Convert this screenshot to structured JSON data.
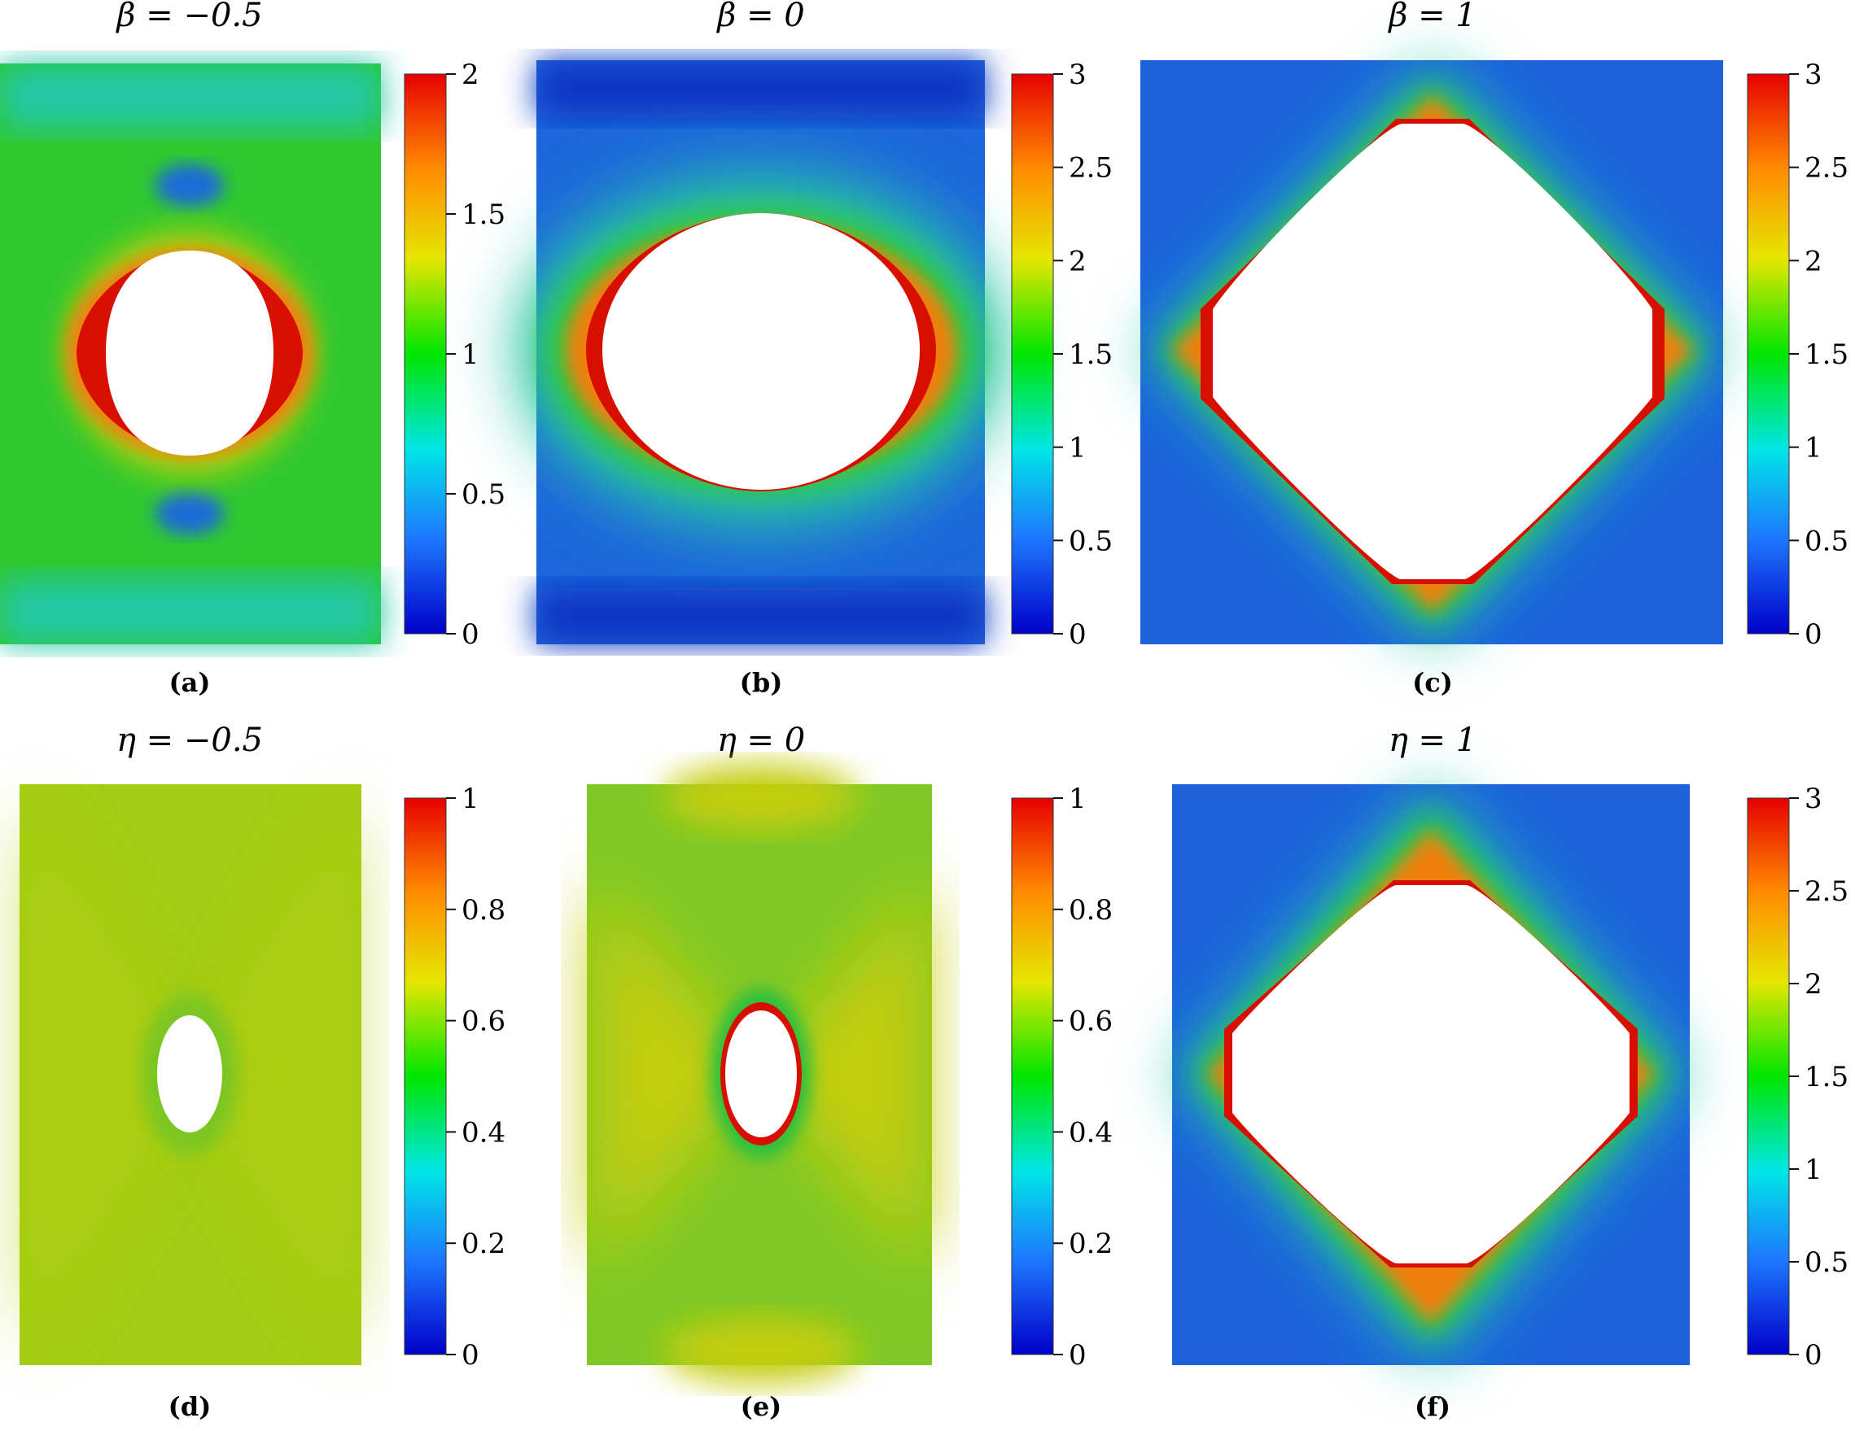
{
  "panels": [
    {
      "title": "β = −0.5",
      "label": "(a)",
      "ticks": [
        "2",
        "1.5",
        "1",
        "0.5",
        "0"
      ]
    },
    {
      "title": "β = 0",
      "label": "(b)",
      "ticks": [
        "3",
        "2.5",
        "2",
        "1.5",
        "1",
        "0.5",
        "0"
      ]
    },
    {
      "title": "β = 1",
      "label": "(c)",
      "ticks": [
        "3",
        "2.5",
        "2",
        "1.5",
        "1",
        "0.5",
        "0"
      ]
    },
    {
      "title": "η = −0.5",
      "label": "(d)",
      "ticks": [
        "1",
        "0.8",
        "0.6",
        "0.4",
        "0.2",
        "0"
      ]
    },
    {
      "title": "η = 0",
      "label": "(e)",
      "ticks": [
        "1",
        "0.8",
        "0.6",
        "0.4",
        "0.2",
        "0"
      ]
    },
    {
      "title": "η = 1",
      "label": "(f)",
      "ticks": [
        "3",
        "2.5",
        "2",
        "1.5",
        "1",
        "0.5",
        "0"
      ]
    }
  ],
  "colormap": [
    "#0000c8",
    "#1e78ff",
    "#00e6e6",
    "#00e600",
    "#e6e600",
    "#ff8c00",
    "#e60000"
  ],
  "field_colors": {
    "deep_blue": "#0a2fc8",
    "blue": "#1f6fe0",
    "cyan_green": "#20c8a0",
    "green": "#2ec82e",
    "yellow_green": "#a6cd14",
    "olive": "#c2cf0e",
    "orange": "#f07a10",
    "red": "#d80e00"
  }
}
